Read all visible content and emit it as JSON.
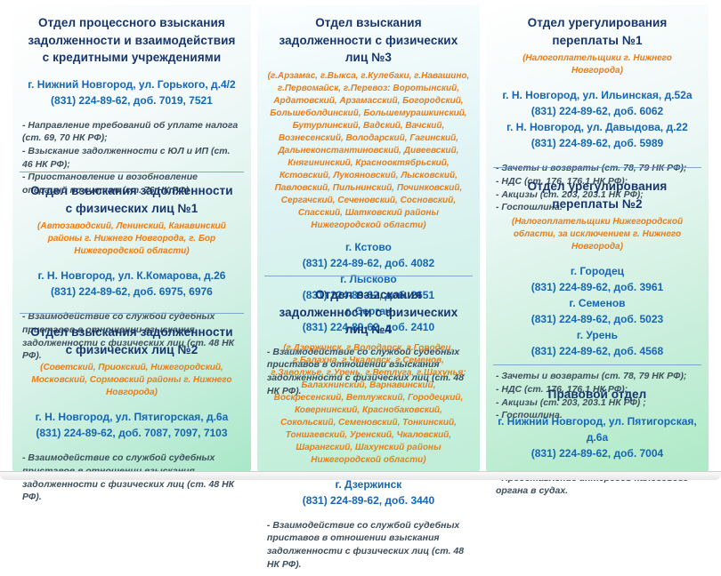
{
  "columns": [
    {
      "sections": [
        {
          "title": "Отдел процессного взыскания задолженности и взаимодействия с кредитными учреждениями",
          "contacts": [
            "г. Нижний Новгород, ул. Горького, д.4/2",
            "(831) 224-89-62, доб. 7019, 7521"
          ],
          "functions": [
            "- Направление требований об уплате налога (ст. 69, 70 НК РФ);",
            "- Взыскание задолженности с ЮЛ и ИП (ст. 46 НК РФ);",
            "- Приостановление и возобновление операций по счетам  (ст. 76 НК РФ) ."
          ]
        },
        {
          "title": "Отдел взыскания задолженности с физических лиц №1",
          "subtitle": "(Автозаводский, Ленинский, Канавинский районы г. Нижнего Новгорода, г. Бор Нижегородской области)",
          "contacts": [
            "г. Н. Новгород, ул. К.Комарова, д.26",
            "(831) 224-89-62, доб. 6975, 6976"
          ],
          "functions": [
            "- Взаимодействие со службой судебных приставов в отношении взыскания задолженности с физических лиц (ст. 48 НК РФ)."
          ]
        },
        {
          "title": "Отдел взыскания задолженности с физических лиц №2",
          "subtitle": "(Советский, Приокский, Нижегородский, Московский, Сормовский районы г. Нижнего Новгорода)",
          "contacts": [
            "г. Н. Новгород, ул. Пятигорская, д.6а",
            "(831) 224-89-62, доб. 7087, 7097, 7103"
          ],
          "functions": [
            "- Взаимодействие со службой судебных приставов в отношении взыскания задолженности с физических лиц (ст. 48 НК РФ)."
          ]
        }
      ]
    },
    {
      "sections": [
        {
          "title": "Отдел взыскания задолженности с физических лиц №3",
          "subtitle": "(г.Арзамас, г.Выкса, г.Кулебаки, г.Навашино, г.Первомайск, г.Перевоз: Воротынский, Ардатовский, Арзамасский, Богородский, Большеболдинский, Большемурашкинский, Бутурлинский, Вадский, Вачский, Вознесенский, Володарский, Гагинский, Дальнеконстантиновский, Дивеевский, Княгининский, Краснооктябрьский, Кстовский, Лукояновский, Лысковский, Павловский, Пильнинский, Починковский, Сергачский, Сеченовский, Сосновский, Спасский, Шатковский районы Нижегородской области)",
          "contacts": [
            "г. Кстово",
            "(831) 224-89-62, доб. 4082",
            "г. Лысково",
            "(831) 224-89-62, доб. 2651",
            "г. Сергач",
            "(831) 224-89-62, доб. 2410"
          ],
          "functions": [
            "- Взаимодействие со службой судебных приставов в отношении взыскания задолженности с физических лиц (ст. 48 НК РФ)."
          ]
        },
        {
          "title": "Отдел взыскания задолженности с физических лиц №4",
          "subtitle": "(г.Дзержинск, г.Володарск, г.Городец, г.Балахна, г.Чкаловск, г.Семенов, г.Заволжье, г.Урень, г.Ветлуга, г.Шахунья; Балахнинский, Варнавинский, Воскресенский, Ветлужский, Городецкий, Ковернинский, Краснобаковский, Сокольский, Семеновский, Тонкинский, Тоншаевский, Уренский, Чкаловский, Шарангский, Шахунский районы Нижегородской области)",
          "contacts": [
            "г. Дзержинск",
            "(831) 224-89-62, доб. 3440"
          ],
          "functions": [
            "- Взаимодействие со службой судебных приставов в отношении взыскания задолженности с физических лиц (ст. 48 НК РФ)."
          ]
        }
      ]
    },
    {
      "sections": [
        {
          "title": "Отдел урегулирования переплаты №1",
          "subtitle": "(Налогоплательщики г. Нижнего Новгорода)",
          "contacts": [
            "г. Н. Новгород, ул. Ильинская, д.52а",
            "(831) 224-89-62, доб. 6062",
            "г. Н. Новгород, ул. Давыдова, д.22",
            "(831) 224-89-62, доб. 5989"
          ],
          "functions": [
            "- Зачеты и возвраты (ст. 78, 79 НК РФ);",
            "- НДС (ст. 176, 176.1 НК РФ);",
            "- Акцизы (ст. 203, 203.1 НК РФ);",
            "- Госпошлина."
          ]
        },
        {
          "title": "Отдел урегулирования переплаты №2",
          "subtitle": "(Налогоплательщики Нижегородской области, за исключением г. Нижнего Новгорода)",
          "contacts": [
            "г. Городец",
            "(831) 224-89-62, доб. 3961",
            "г. Семенов",
            "(831) 224-89-62, доб. 5023",
            "г. Урень",
            "(831) 224-89-62, доб. 4568"
          ],
          "functions": [
            "- Зачеты и возвраты (ст. 78, 79 НК РФ);",
            "- НДС (ст. 176, 176.1 НК РФ);",
            "- Акцизы (ст. 203, 203.1 НК РФ) ;",
            "- Госпошлина."
          ]
        },
        {
          "title": "Правовой отдел",
          "contacts": [
            "г. Нижний Новгород, ул. Пятигорская, д.6а",
            "(831) 224-89-62, доб. 7004"
          ],
          "functions": [
            "-  Представление интересов налогового органа в судах."
          ]
        }
      ]
    }
  ]
}
